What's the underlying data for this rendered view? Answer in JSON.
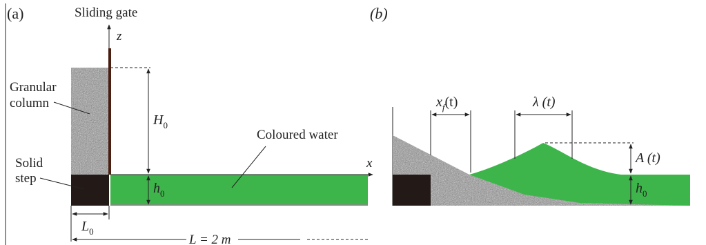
{
  "panel_a": {
    "tag": "(a)",
    "gate_label": "Sliding gate",
    "z_axis": "z",
    "x_axis": "x",
    "column_label_line1": "Granular",
    "column_label_line2": "column",
    "step_label_line1": "Solid",
    "step_label_line2": "step",
    "water_label": "Coloured water",
    "H_sym": "H",
    "H_sub": "0",
    "h_sym": "h",
    "h_sub": "0",
    "L0_sym": "L",
    "L0_sub": "0",
    "L_label": "L = 2 m"
  },
  "panel_b": {
    "tag": "(b)",
    "xf_sym": "x",
    "xf_sub": "f",
    "xf_arg": "(t)",
    "lambda_label": "λ (t)",
    "A_label": "A (t)",
    "h_sym": "h",
    "h_sub": "0"
  },
  "colors": {
    "water": "#3db54a",
    "granular": "#8c8c8c",
    "step": "#231a17",
    "gate": "#4a1f12"
  }
}
